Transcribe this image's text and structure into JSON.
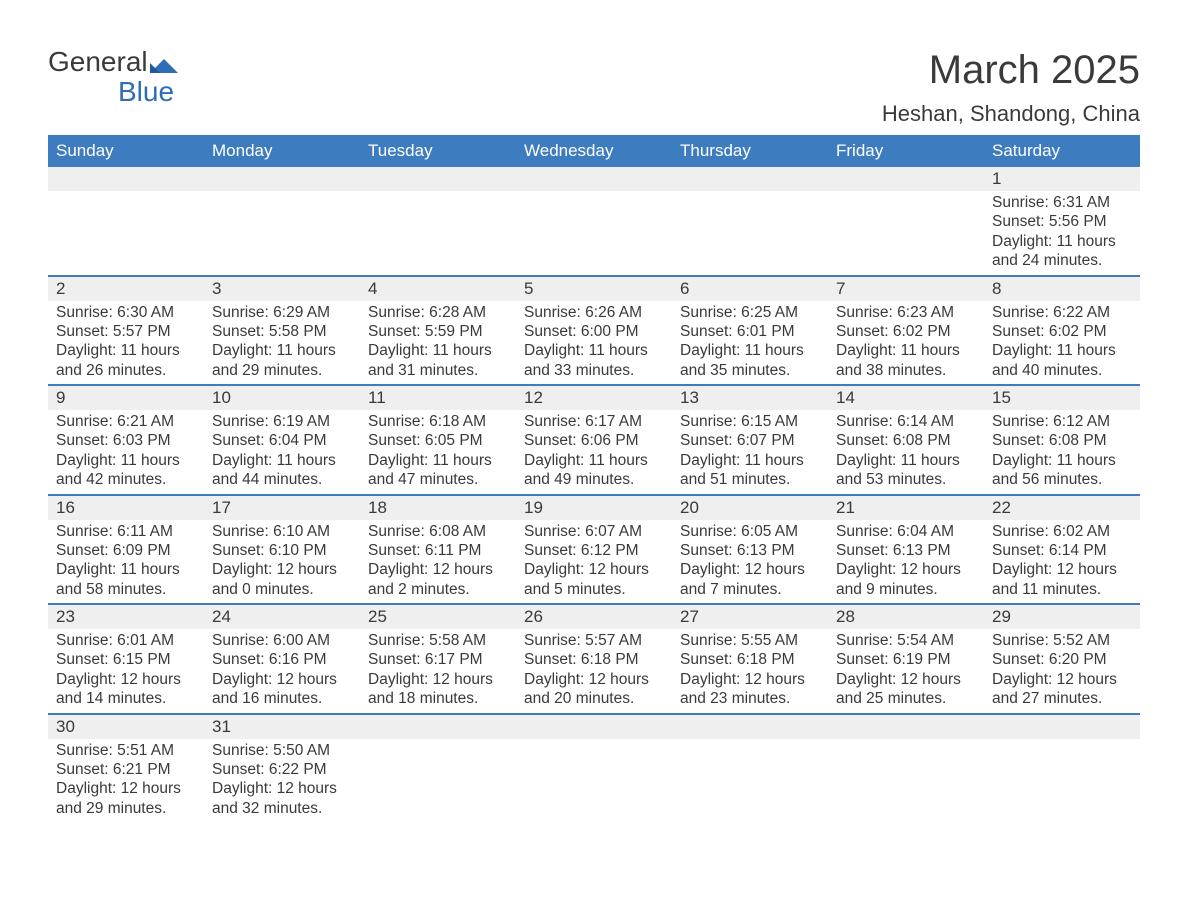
{
  "logo": {
    "word1": "General",
    "word2": "Blue"
  },
  "title": "March 2025",
  "subtitle": "Heshan, Shandong, China",
  "colors": {
    "header_bg": "#3d7cbf",
    "header_text": "#ffffff",
    "daynum_bg": "#efefef",
    "divider": "#3d7cbf",
    "body_text": "#3a3a3a",
    "logo_blue": "#2f6eb5",
    "background": "#ffffff"
  },
  "day_labels": [
    "Sunday",
    "Monday",
    "Tuesday",
    "Wednesday",
    "Thursday",
    "Friday",
    "Saturday"
  ],
  "weeks": [
    [
      null,
      null,
      null,
      null,
      null,
      null,
      {
        "n": "1",
        "sunrise": "Sunrise: 6:31 AM",
        "sunset": "Sunset: 5:56 PM",
        "d1": "Daylight: 11 hours",
        "d2": "and 24 minutes."
      }
    ],
    [
      {
        "n": "2",
        "sunrise": "Sunrise: 6:30 AM",
        "sunset": "Sunset: 5:57 PM",
        "d1": "Daylight: 11 hours",
        "d2": "and 26 minutes."
      },
      {
        "n": "3",
        "sunrise": "Sunrise: 6:29 AM",
        "sunset": "Sunset: 5:58 PM",
        "d1": "Daylight: 11 hours",
        "d2": "and 29 minutes."
      },
      {
        "n": "4",
        "sunrise": "Sunrise: 6:28 AM",
        "sunset": "Sunset: 5:59 PM",
        "d1": "Daylight: 11 hours",
        "d2": "and 31 minutes."
      },
      {
        "n": "5",
        "sunrise": "Sunrise: 6:26 AM",
        "sunset": "Sunset: 6:00 PM",
        "d1": "Daylight: 11 hours",
        "d2": "and 33 minutes."
      },
      {
        "n": "6",
        "sunrise": "Sunrise: 6:25 AM",
        "sunset": "Sunset: 6:01 PM",
        "d1": "Daylight: 11 hours",
        "d2": "and 35 minutes."
      },
      {
        "n": "7",
        "sunrise": "Sunrise: 6:23 AM",
        "sunset": "Sunset: 6:02 PM",
        "d1": "Daylight: 11 hours",
        "d2": "and 38 minutes."
      },
      {
        "n": "8",
        "sunrise": "Sunrise: 6:22 AM",
        "sunset": "Sunset: 6:02 PM",
        "d1": "Daylight: 11 hours",
        "d2": "and 40 minutes."
      }
    ],
    [
      {
        "n": "9",
        "sunrise": "Sunrise: 6:21 AM",
        "sunset": "Sunset: 6:03 PM",
        "d1": "Daylight: 11 hours",
        "d2": "and 42 minutes."
      },
      {
        "n": "10",
        "sunrise": "Sunrise: 6:19 AM",
        "sunset": "Sunset: 6:04 PM",
        "d1": "Daylight: 11 hours",
        "d2": "and 44 minutes."
      },
      {
        "n": "11",
        "sunrise": "Sunrise: 6:18 AM",
        "sunset": "Sunset: 6:05 PM",
        "d1": "Daylight: 11 hours",
        "d2": "and 47 minutes."
      },
      {
        "n": "12",
        "sunrise": "Sunrise: 6:17 AM",
        "sunset": "Sunset: 6:06 PM",
        "d1": "Daylight: 11 hours",
        "d2": "and 49 minutes."
      },
      {
        "n": "13",
        "sunrise": "Sunrise: 6:15 AM",
        "sunset": "Sunset: 6:07 PM",
        "d1": "Daylight: 11 hours",
        "d2": "and 51 minutes."
      },
      {
        "n": "14",
        "sunrise": "Sunrise: 6:14 AM",
        "sunset": "Sunset: 6:08 PM",
        "d1": "Daylight: 11 hours",
        "d2": "and 53 minutes."
      },
      {
        "n": "15",
        "sunrise": "Sunrise: 6:12 AM",
        "sunset": "Sunset: 6:08 PM",
        "d1": "Daylight: 11 hours",
        "d2": "and 56 minutes."
      }
    ],
    [
      {
        "n": "16",
        "sunrise": "Sunrise: 6:11 AM",
        "sunset": "Sunset: 6:09 PM",
        "d1": "Daylight: 11 hours",
        "d2": "and 58 minutes."
      },
      {
        "n": "17",
        "sunrise": "Sunrise: 6:10 AM",
        "sunset": "Sunset: 6:10 PM",
        "d1": "Daylight: 12 hours",
        "d2": "and 0 minutes."
      },
      {
        "n": "18",
        "sunrise": "Sunrise: 6:08 AM",
        "sunset": "Sunset: 6:11 PM",
        "d1": "Daylight: 12 hours",
        "d2": "and 2 minutes."
      },
      {
        "n": "19",
        "sunrise": "Sunrise: 6:07 AM",
        "sunset": "Sunset: 6:12 PM",
        "d1": "Daylight: 12 hours",
        "d2": "and 5 minutes."
      },
      {
        "n": "20",
        "sunrise": "Sunrise: 6:05 AM",
        "sunset": "Sunset: 6:13 PM",
        "d1": "Daylight: 12 hours",
        "d2": "and 7 minutes."
      },
      {
        "n": "21",
        "sunrise": "Sunrise: 6:04 AM",
        "sunset": "Sunset: 6:13 PM",
        "d1": "Daylight: 12 hours",
        "d2": "and 9 minutes."
      },
      {
        "n": "22",
        "sunrise": "Sunrise: 6:02 AM",
        "sunset": "Sunset: 6:14 PM",
        "d1": "Daylight: 12 hours",
        "d2": "and 11 minutes."
      }
    ],
    [
      {
        "n": "23",
        "sunrise": "Sunrise: 6:01 AM",
        "sunset": "Sunset: 6:15 PM",
        "d1": "Daylight: 12 hours",
        "d2": "and 14 minutes."
      },
      {
        "n": "24",
        "sunrise": "Sunrise: 6:00 AM",
        "sunset": "Sunset: 6:16 PM",
        "d1": "Daylight: 12 hours",
        "d2": "and 16 minutes."
      },
      {
        "n": "25",
        "sunrise": "Sunrise: 5:58 AM",
        "sunset": "Sunset: 6:17 PM",
        "d1": "Daylight: 12 hours",
        "d2": "and 18 minutes."
      },
      {
        "n": "26",
        "sunrise": "Sunrise: 5:57 AM",
        "sunset": "Sunset: 6:18 PM",
        "d1": "Daylight: 12 hours",
        "d2": "and 20 minutes."
      },
      {
        "n": "27",
        "sunrise": "Sunrise: 5:55 AM",
        "sunset": "Sunset: 6:18 PM",
        "d1": "Daylight: 12 hours",
        "d2": "and 23 minutes."
      },
      {
        "n": "28",
        "sunrise": "Sunrise: 5:54 AM",
        "sunset": "Sunset: 6:19 PM",
        "d1": "Daylight: 12 hours",
        "d2": "and 25 minutes."
      },
      {
        "n": "29",
        "sunrise": "Sunrise: 5:52 AM",
        "sunset": "Sunset: 6:20 PM",
        "d1": "Daylight: 12 hours",
        "d2": "and 27 minutes."
      }
    ],
    [
      {
        "n": "30",
        "sunrise": "Sunrise: 5:51 AM",
        "sunset": "Sunset: 6:21 PM",
        "d1": "Daylight: 12 hours",
        "d2": "and 29 minutes."
      },
      {
        "n": "31",
        "sunrise": "Sunrise: 5:50 AM",
        "sunset": "Sunset: 6:22 PM",
        "d1": "Daylight: 12 hours",
        "d2": "and 32 minutes."
      },
      null,
      null,
      null,
      null,
      null
    ]
  ]
}
